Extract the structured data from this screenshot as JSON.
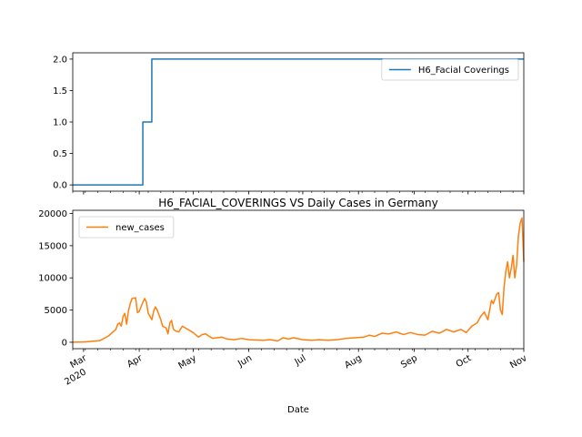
{
  "chart_data": [
    {
      "type": "line",
      "title": "",
      "xlabel": "",
      "ylabel": "",
      "xlim": [
        "2020-02-24",
        "2020-11-01"
      ],
      "ylim": [
        -0.1,
        2.1
      ],
      "yticks": [
        "0.0",
        "0.5",
        "1.0",
        "1.5",
        "2.0"
      ],
      "ytick_values": [
        0,
        0.5,
        1.0,
        1.5,
        2.0
      ],
      "legend_position": "top-right",
      "grid": false,
      "series": [
        {
          "name": "H6_Facial Coverings",
          "color": "#1f77b4",
          "step": true,
          "points": [
            [
              "2020-02-24",
              0
            ],
            [
              "2020-04-02",
              0
            ],
            [
              "2020-04-03",
              1
            ],
            [
              "2020-04-07",
              1
            ],
            [
              "2020-04-08",
              2
            ],
            [
              "2020-11-01",
              2
            ]
          ]
        }
      ]
    },
    {
      "type": "line",
      "title": "H6_FACIAL_COVERINGS VS Daily Cases in Germany",
      "xlabel": "Date",
      "ylabel": "",
      "xlim": [
        "2020-02-24",
        "2020-11-01"
      ],
      "ylim": [
        -1000,
        20500
      ],
      "yticks": [
        "0",
        "5000",
        "10000",
        "15000",
        "20000"
      ],
      "ytick_values": [
        0,
        5000,
        10000,
        15000,
        20000
      ],
      "xticks": [
        "Mar\n2020",
        "Apr",
        "May",
        "Jun",
        "Jul",
        "Aug",
        "Sep",
        "Oct",
        "Nov"
      ],
      "xtick_dates": [
        "2020-03-01",
        "2020-04-01",
        "2020-05-01",
        "2020-06-01",
        "2020-07-01",
        "2020-08-01",
        "2020-09-01",
        "2020-10-01",
        "2020-11-01"
      ],
      "legend_position": "top-left",
      "grid": false,
      "series": [
        {
          "name": "new_cases",
          "color": "#ff7f0e",
          "points": [
            [
              "2020-02-24",
              0
            ],
            [
              "2020-03-01",
              50
            ],
            [
              "2020-03-06",
              150
            ],
            [
              "2020-03-10",
              250
            ],
            [
              "2020-03-13",
              700
            ],
            [
              "2020-03-15",
              1000
            ],
            [
              "2020-03-17",
              1500
            ],
            [
              "2020-03-19",
              2000
            ],
            [
              "2020-03-20",
              2800
            ],
            [
              "2020-03-21",
              3000
            ],
            [
              "2020-03-22",
              2500
            ],
            [
              "2020-03-23",
              4000
            ],
            [
              "2020-03-24",
              4500
            ],
            [
              "2020-03-25",
              2800
            ],
            [
              "2020-03-26",
              4900
            ],
            [
              "2020-03-27",
              6000
            ],
            [
              "2020-03-28",
              6800
            ],
            [
              "2020-03-30",
              6900
            ],
            [
              "2020-03-31",
              4600
            ],
            [
              "2020-04-01",
              4800
            ],
            [
              "2020-04-03",
              6200
            ],
            [
              "2020-04-04",
              6800
            ],
            [
              "2020-04-05",
              6200
            ],
            [
              "2020-04-06",
              4500
            ],
            [
              "2020-04-08",
              3500
            ],
            [
              "2020-04-09",
              4800
            ],
            [
              "2020-04-10",
              5500
            ],
            [
              "2020-04-11",
              5000
            ],
            [
              "2020-04-13",
              3500
            ],
            [
              "2020-04-14",
              2500
            ],
            [
              "2020-04-16",
              2200
            ],
            [
              "2020-04-17",
              1300
            ],
            [
              "2020-04-18",
              3000
            ],
            [
              "2020-04-19",
              3400
            ],
            [
              "2020-04-20",
              2000
            ],
            [
              "2020-04-21",
              1800
            ],
            [
              "2020-04-23",
              1600
            ],
            [
              "2020-04-25",
              2500
            ],
            [
              "2020-04-28",
              2000
            ],
            [
              "2020-05-01",
              1500
            ],
            [
              "2020-05-04",
              800
            ],
            [
              "2020-05-06",
              1200
            ],
            [
              "2020-05-08",
              1300
            ],
            [
              "2020-05-10",
              900
            ],
            [
              "2020-05-12",
              600
            ],
            [
              "2020-05-14",
              700
            ],
            [
              "2020-05-17",
              800
            ],
            [
              "2020-05-20",
              500
            ],
            [
              "2020-05-24",
              400
            ],
            [
              "2020-05-28",
              600
            ],
            [
              "2020-06-01",
              400
            ],
            [
              "2020-06-05",
              350
            ],
            [
              "2020-06-09",
              300
            ],
            [
              "2020-06-13",
              400
            ],
            [
              "2020-06-17",
              200
            ],
            [
              "2020-06-20",
              700
            ],
            [
              "2020-06-23",
              500
            ],
            [
              "2020-06-26",
              700
            ],
            [
              "2020-07-01",
              400
            ],
            [
              "2020-07-06",
              300
            ],
            [
              "2020-07-10",
              400
            ],
            [
              "2020-07-15",
              300
            ],
            [
              "2020-07-20",
              400
            ],
            [
              "2020-07-25",
              600
            ],
            [
              "2020-07-30",
              700
            ],
            [
              "2020-08-04",
              800
            ],
            [
              "2020-08-07",
              1100
            ],
            [
              "2020-08-10",
              900
            ],
            [
              "2020-08-14",
              1400
            ],
            [
              "2020-08-18",
              1300
            ],
            [
              "2020-08-22",
              1600
            ],
            [
              "2020-08-26",
              1200
            ],
            [
              "2020-08-30",
              1500
            ],
            [
              "2020-09-03",
              1200
            ],
            [
              "2020-09-07",
              1100
            ],
            [
              "2020-09-11",
              1700
            ],
            [
              "2020-09-15",
              1400
            ],
            [
              "2020-09-19",
              2000
            ],
            [
              "2020-09-23",
              1600
            ],
            [
              "2020-09-27",
              2000
            ],
            [
              "2020-09-30",
              1500
            ],
            [
              "2020-10-03",
              2500
            ],
            [
              "2020-10-06",
              3000
            ],
            [
              "2020-10-08",
              4000
            ],
            [
              "2020-10-10",
              4700
            ],
            [
              "2020-10-12",
              3500
            ],
            [
              "2020-10-14",
              6500
            ],
            [
              "2020-10-15",
              6000
            ],
            [
              "2020-10-17",
              7500
            ],
            [
              "2020-10-18",
              7700
            ],
            [
              "2020-10-19",
              5000
            ],
            [
              "2020-10-20",
              4300
            ],
            [
              "2020-10-21",
              8500
            ],
            [
              "2020-10-22",
              11000
            ],
            [
              "2020-10-23",
              12500
            ],
            [
              "2020-10-24",
              10000
            ],
            [
              "2020-10-25",
              11500
            ],
            [
              "2020-10-26",
              13500
            ],
            [
              "2020-10-27",
              10000
            ],
            [
              "2020-10-28",
              12000
            ],
            [
              "2020-10-29",
              16500
            ],
            [
              "2020-10-30",
              18500
            ],
            [
              "2020-10-31",
              19300
            ],
            [
              "2020-11-01",
              12500
            ]
          ]
        }
      ]
    }
  ]
}
